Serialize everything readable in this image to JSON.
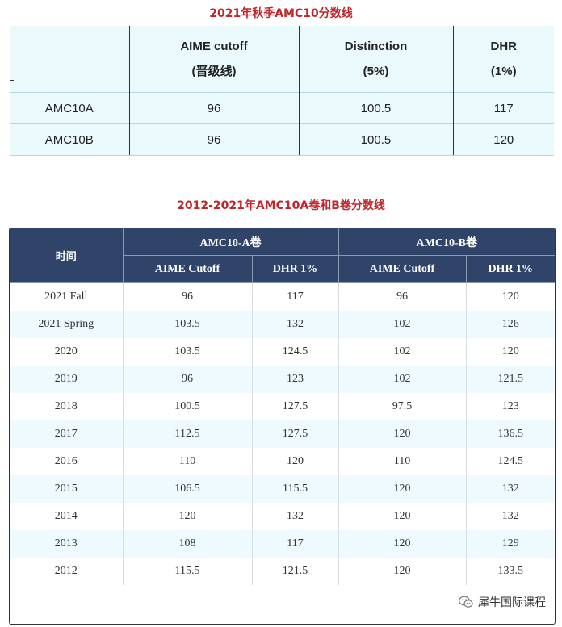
{
  "table1": {
    "title": "2021年秋季AMC10分数线",
    "headers": [
      {
        "line1": "AIME cutoff",
        "line2": "(晋级线)"
      },
      {
        "line1": "Distinction",
        "line2": "(5%)"
      },
      {
        "line1": "DHR",
        "line2": "(1%)"
      }
    ],
    "rows": [
      [
        "AMC10A",
        "96",
        "100.5",
        "117"
      ],
      [
        "AMC10B",
        "96",
        "100.5",
        "120"
      ]
    ]
  },
  "table2": {
    "title": "2012-2021年AMC10A卷和B卷分数线",
    "time_header": "时间",
    "group_a": "AMC10-A卷",
    "group_b": "AMC10-B卷",
    "sub_headers": [
      "AIME Cutoff",
      "DHR 1%",
      "AIME Cutoff",
      "DHR 1%"
    ],
    "rows": [
      [
        "2021 Fall",
        "96",
        "117",
        "96",
        "120"
      ],
      [
        "2021 Spring",
        "103.5",
        "132",
        "102",
        "126"
      ],
      [
        "2020",
        "103.5",
        "124.5",
        "102",
        "120"
      ],
      [
        "2019",
        "96",
        "123",
        "102",
        "121.5"
      ],
      [
        "2018",
        "100.5",
        "127.5",
        "97.5",
        "123"
      ],
      [
        "2017",
        "112.5",
        "127.5",
        "120",
        "136.5"
      ],
      [
        "2016",
        "110",
        "120",
        "110",
        "124.5"
      ],
      [
        "2015",
        "106.5",
        "115.5",
        "120",
        "132"
      ],
      [
        "2014",
        "120",
        "132",
        "120",
        "132"
      ],
      [
        "2013",
        "108",
        "117",
        "120",
        "129"
      ],
      [
        "2012",
        "115.5",
        "121.5",
        "120",
        "133.5"
      ]
    ]
  },
  "watermark": {
    "text": "犀牛国际课程",
    "icon": "wechat-icon"
  },
  "colors": {
    "title_red": "#c0262b",
    "header_navy": "#2f4468",
    "row_tint": "#eefafd"
  }
}
